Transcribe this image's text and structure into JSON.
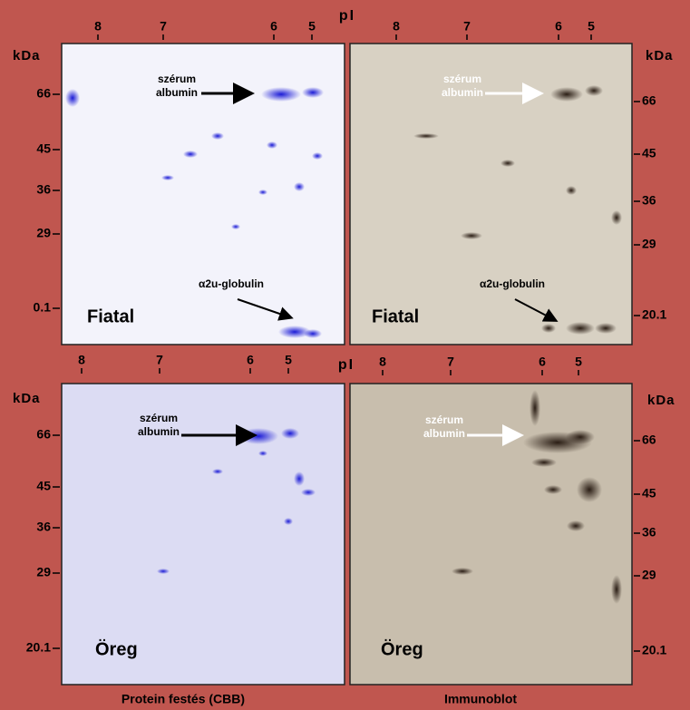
{
  "rows": [
    {
      "pi_label": "pI"
    },
    {
      "pi_label": "pI"
    }
  ],
  "panels": [
    {
      "pi_ticks": [
        "8",
        "7",
        "6",
        "5"
      ],
      "kda_label": "kDa",
      "kda_ticks": [
        "66",
        "45",
        "36",
        "29",
        "0.1"
      ],
      "albumin": [
        "szérum",
        "albumin"
      ],
      "globulin": "α2u-globulin",
      "age": "Fiatal"
    },
    {
      "pi_ticks": [
        "8",
        "7",
        "6",
        "5"
      ],
      "kda_label": "kDa",
      "kda_ticks": [
        "66",
        "45",
        "36",
        "29",
        "20.1"
      ],
      "albumin": [
        "szérum",
        "albumin"
      ],
      "globulin": "α2u-globulin",
      "age": "Fiatal"
    },
    {
      "pi_ticks": [
        "8",
        "7",
        "6",
        "5"
      ],
      "kda_label": "kDa",
      "kda_ticks": [
        "66",
        "45",
        "36",
        "29",
        "20.1"
      ],
      "albumin": [
        "szérum",
        "albumin"
      ],
      "age": "Öreg"
    },
    {
      "pi_ticks": [
        "8",
        "7",
        "6",
        "5"
      ],
      "kda_label": "kDa",
      "kda_ticks": [
        "66",
        "45",
        "36",
        "29",
        "20.1"
      ],
      "albumin": [
        "szérum",
        "albumin"
      ],
      "age": "Öreg"
    }
  ],
  "captions": [
    "Protein festés (CBB)",
    "Immunoblot"
  ]
}
